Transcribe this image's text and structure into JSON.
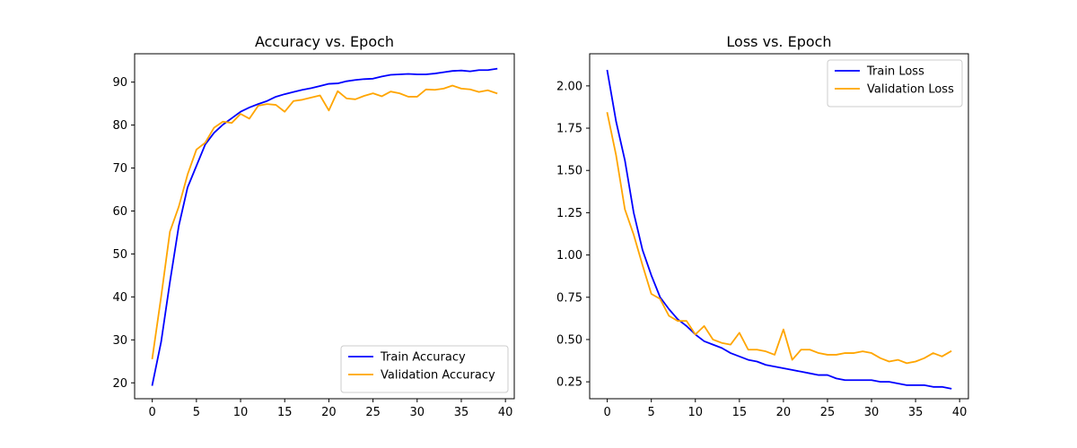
{
  "chart_data": [
    {
      "type": "line",
      "title": "Accuracy vs. Epoch",
      "xlabel": "",
      "ylabel": "",
      "xlim": [
        -2,
        41
      ],
      "ylim": [
        16.3,
        96.6
      ],
      "xticks": [
        0,
        5,
        10,
        15,
        20,
        25,
        30,
        35,
        40
      ],
      "yticks": [
        20,
        30,
        40,
        50,
        60,
        70,
        80,
        90
      ],
      "grid": false,
      "legend_position": "lower-right",
      "x": [
        0,
        1,
        2,
        3,
        4,
        5,
        6,
        7,
        8,
        9,
        10,
        11,
        12,
        13,
        14,
        15,
        16,
        17,
        18,
        19,
        20,
        21,
        22,
        23,
        24,
        25,
        26,
        27,
        28,
        29,
        30,
        31,
        32,
        33,
        34,
        35,
        36,
        37,
        38,
        39
      ],
      "series": [
        {
          "name": "Train Accuracy",
          "color": "#0000ff",
          "values": [
            19.5,
            29.5,
            43.5,
            56.5,
            65.5,
            70.5,
            75.5,
            78.2,
            80.1,
            81.6,
            83.1,
            84.1,
            84.9,
            85.6,
            86.6,
            87.2,
            87.7,
            88.2,
            88.6,
            89.1,
            89.6,
            89.7,
            90.2,
            90.5,
            90.7,
            90.8,
            91.3,
            91.7,
            91.8,
            91.9,
            91.8,
            91.8,
            92.0,
            92.3,
            92.6,
            92.7,
            92.5,
            92.8,
            92.8,
            93.1
          ]
        },
        {
          "name": "Validation Accuracy",
          "color": "#ffa500",
          "values": [
            25.7,
            40.0,
            55.2,
            61.0,
            68.5,
            74.3,
            75.9,
            79.4,
            80.8,
            80.5,
            82.6,
            81.5,
            84.5,
            84.9,
            84.7,
            83.1,
            85.6,
            85.9,
            86.4,
            86.9,
            83.4,
            87.9,
            86.2,
            86.0,
            86.8,
            87.4,
            86.7,
            87.8,
            87.4,
            86.6,
            86.6,
            88.3,
            88.2,
            88.5,
            89.2,
            88.5,
            88.3,
            87.7,
            88.1,
            87.4
          ]
        }
      ]
    },
    {
      "type": "line",
      "title": "Loss vs. Epoch",
      "xlabel": "",
      "ylabel": "",
      "xlim": [
        -2,
        41
      ],
      "ylim": [
        0.15,
        2.19
      ],
      "xticks": [
        0,
        5,
        10,
        15,
        20,
        25,
        30,
        35,
        40
      ],
      "yticks": [
        0.25,
        0.5,
        0.75,
        1.0,
        1.25,
        1.5,
        1.75,
        2.0
      ],
      "ytick_labels": [
        "0.25",
        "0.50",
        "0.75",
        "1.00",
        "1.25",
        "1.50",
        "1.75",
        "2.00"
      ],
      "grid": false,
      "legend_position": "top-right",
      "x": [
        0,
        1,
        2,
        3,
        4,
        5,
        6,
        7,
        8,
        9,
        10,
        11,
        12,
        13,
        14,
        15,
        16,
        17,
        18,
        19,
        20,
        21,
        22,
        23,
        24,
        25,
        26,
        27,
        28,
        29,
        30,
        31,
        32,
        33,
        34,
        35,
        36,
        37,
        38,
        39
      ],
      "series": [
        {
          "name": "Train Loss",
          "color": "#0000ff",
          "values": [
            2.09,
            1.79,
            1.56,
            1.25,
            1.03,
            0.88,
            0.75,
            0.68,
            0.62,
            0.58,
            0.53,
            0.49,
            0.47,
            0.45,
            0.42,
            0.4,
            0.38,
            0.37,
            0.35,
            0.34,
            0.33,
            0.32,
            0.31,
            0.3,
            0.29,
            0.29,
            0.27,
            0.26,
            0.26,
            0.26,
            0.26,
            0.25,
            0.25,
            0.24,
            0.23,
            0.23,
            0.23,
            0.22,
            0.22,
            0.21
          ]
        },
        {
          "name": "Validation Loss",
          "color": "#ffa500",
          "values": [
            1.84,
            1.59,
            1.27,
            1.12,
            0.94,
            0.77,
            0.74,
            0.64,
            0.61,
            0.61,
            0.53,
            0.58,
            0.5,
            0.48,
            0.47,
            0.54,
            0.44,
            0.44,
            0.43,
            0.41,
            0.56,
            0.38,
            0.44,
            0.44,
            0.42,
            0.41,
            0.41,
            0.42,
            0.42,
            0.43,
            0.42,
            0.39,
            0.37,
            0.38,
            0.36,
            0.37,
            0.39,
            0.42,
            0.4,
            0.43
          ]
        }
      ]
    }
  ]
}
